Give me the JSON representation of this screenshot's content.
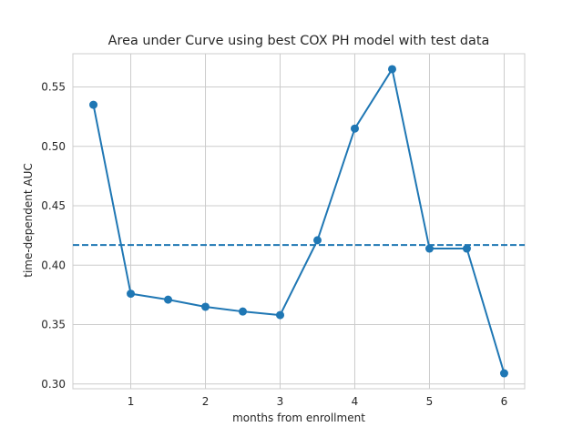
{
  "chart_data": {
    "type": "line",
    "title": "Area under Curve using best COX PH model with test data",
    "xlabel": "months from enrollment",
    "ylabel": "time-dependent AUC",
    "xlim": [
      0.225,
      6.275
    ],
    "ylim": [
      0.296,
      0.578
    ],
    "x_ticks": [
      "1",
      "2",
      "3",
      "4",
      "5",
      "6"
    ],
    "x_tick_values": [
      1,
      2,
      3,
      4,
      5,
      6
    ],
    "y_ticks": [
      "0.30",
      "0.35",
      "0.40",
      "0.45",
      "0.50",
      "0.55"
    ],
    "y_tick_values": [
      0.3,
      0.35,
      0.4,
      0.45,
      0.5,
      0.55
    ],
    "grid": true,
    "series": [
      {
        "x": [
          0.5,
          1.0,
          1.5,
          2.0,
          2.5,
          3.0,
          3.5,
          4.0,
          4.5,
          5.0,
          5.5,
          6.0
        ],
        "y": [
          0.535,
          0.376,
          0.371,
          0.365,
          0.361,
          0.358,
          0.421,
          0.515,
          0.565,
          0.414,
          0.414,
          0.309
        ],
        "color": "#1f77b4",
        "marker": "circle"
      }
    ],
    "reference_line": {
      "y": 0.417,
      "style": "dashed",
      "color": "#1f77b4"
    }
  },
  "colors": {
    "background": "#ffffff",
    "grid": "#cccccc",
    "spine": "#cccccc",
    "text": "#262626",
    "series": "#1f77b4"
  }
}
